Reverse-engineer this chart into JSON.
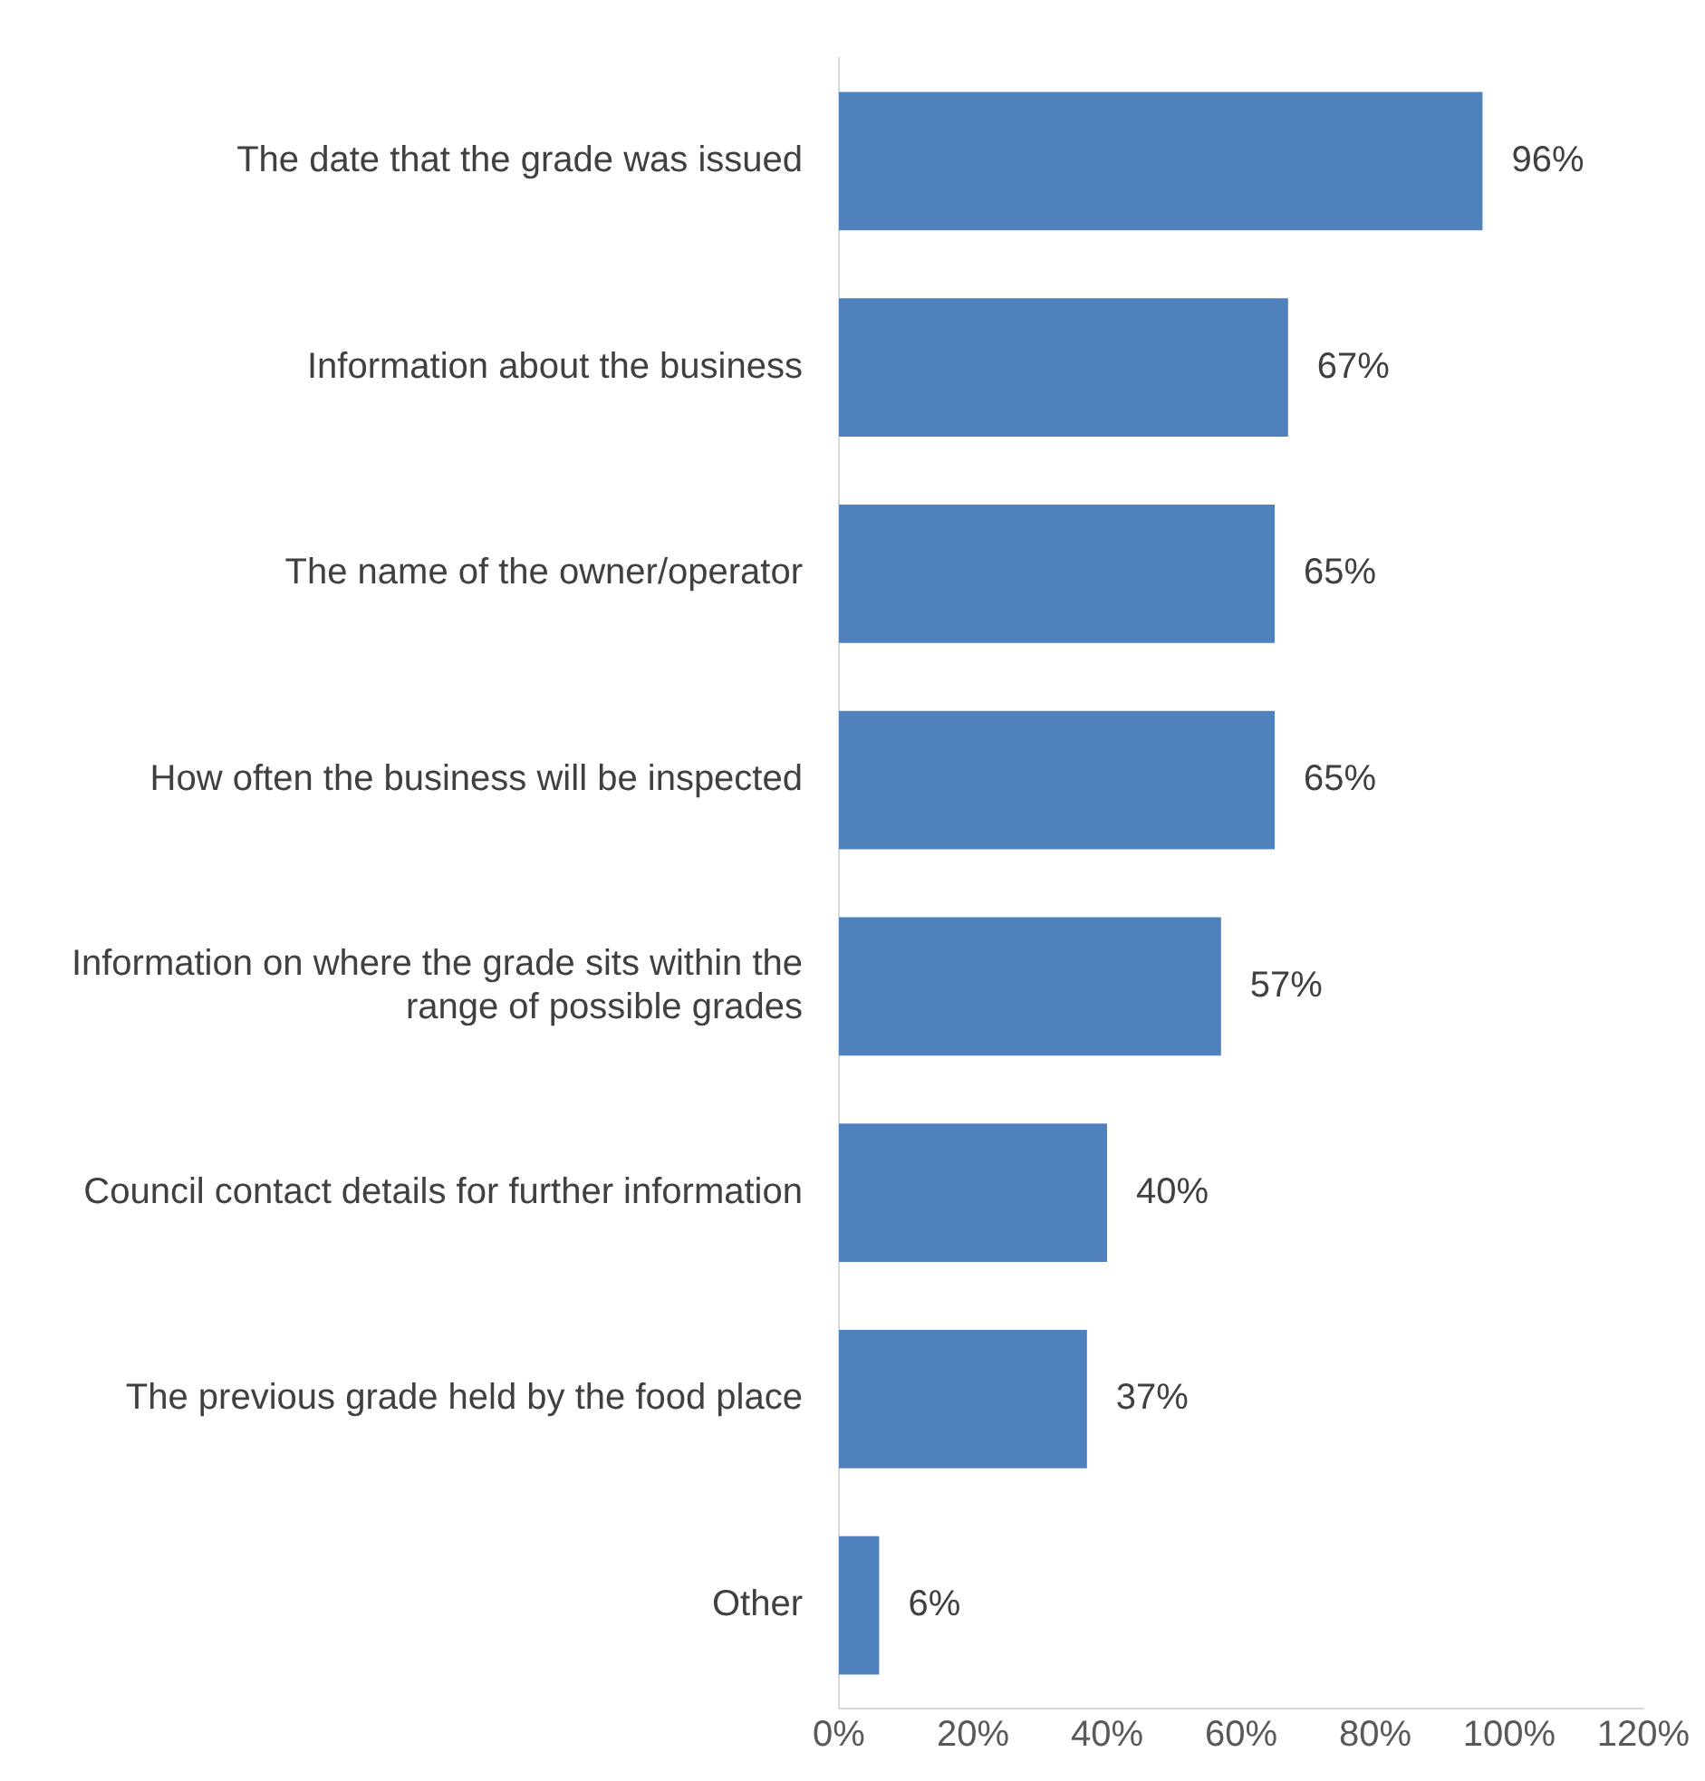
{
  "chart_data": {
    "type": "bar",
    "orientation": "horizontal",
    "categories": [
      "The date that the grade was issued",
      "Information about the business",
      "The name of the owner/operator",
      "How often the business will be inspected",
      "Information on where the grade sits within the range of possible grades",
      "Council contact details for further information",
      "The previous grade held by the food place",
      "Other"
    ],
    "values": [
      96,
      67,
      65,
      65,
      57,
      40,
      37,
      6
    ],
    "value_labels": [
      "96%",
      "67%",
      "65%",
      "65%",
      "57%",
      "40%",
      "37%",
      "6%"
    ],
    "color": "#4f81bd",
    "xlim": [
      0,
      120
    ],
    "xticks": [
      {
        "value": 0,
        "label": "0%"
      },
      {
        "value": 20,
        "label": "20%"
      },
      {
        "value": 40,
        "label": "40%"
      },
      {
        "value": 60,
        "label": "60%"
      },
      {
        "value": 80,
        "label": "80%"
      },
      {
        "value": 100,
        "label": "100%"
      },
      {
        "value": 120,
        "label": "120%"
      }
    ],
    "grid": false,
    "legend": false
  }
}
